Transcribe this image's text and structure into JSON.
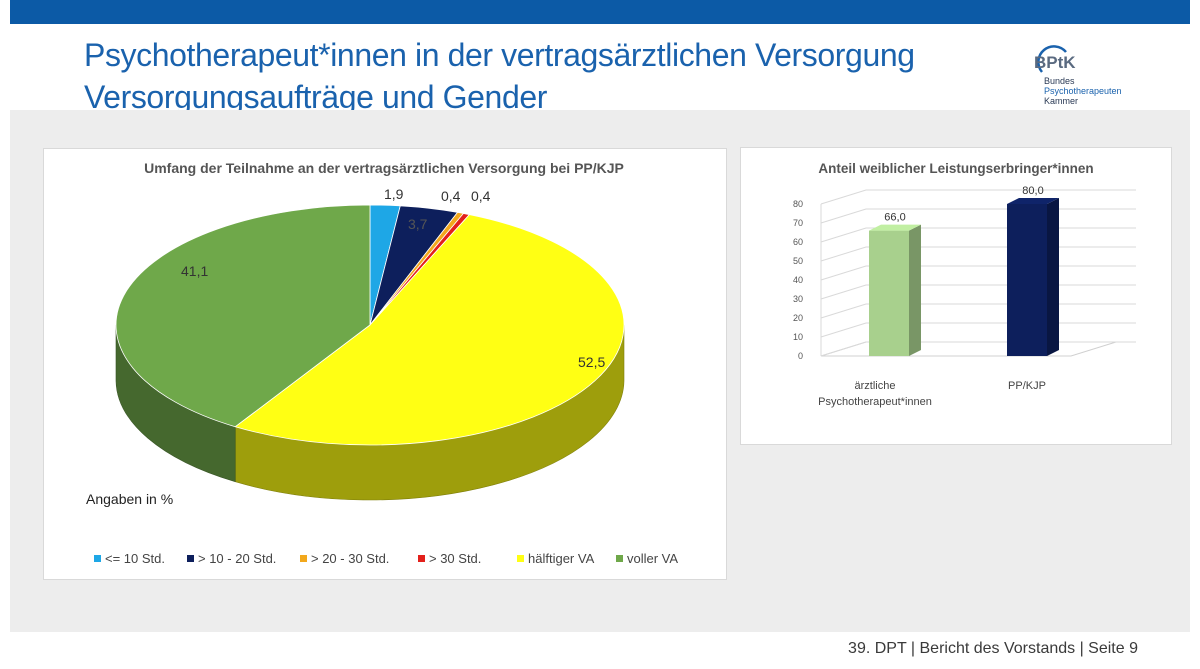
{
  "header": {
    "title_line1": "Psychotherapeut*innen in der vertragsärztlichen Versorgung",
    "title_line2": "Versorgungsaufträge und Gender"
  },
  "logo": {
    "mark": "BPtK",
    "line1": "Bundes",
    "line2": "Psychotherapeuten",
    "line3": "Kammer"
  },
  "footer": {
    "text": "39. DPT | Bericht des Vorstands | Seite 9"
  },
  "chart_data": [
    {
      "type": "pie",
      "title": "Umfang der Teilnahme an der vertragsärztlichen Versorgung bei PP/KJP",
      "note": "Angaben in %",
      "legend_position": "bottom",
      "slices": [
        {
          "label": "<= 10 Std.",
          "value": 1.9,
          "value_label": "1,9",
          "color": "#1ea7e6"
        },
        {
          "label": "> 10 - 20 Std.",
          "value": 3.7,
          "value_label": "3,7",
          "color": "#0d1f5c"
        },
        {
          "label": "> 20 - 30 Std.",
          "value": 0.4,
          "value_label": "0,4",
          "color": "#f2a81c"
        },
        {
          "label": "> 30 Std.",
          "value": 0.4,
          "value_label": "0,4",
          "color": "#e3201b"
        },
        {
          "label": "hälftiger VA",
          "value": 52.5,
          "value_label": "52,5",
          "color": "#ffff14"
        },
        {
          "label": "voller VA",
          "value": 41.1,
          "value_label": "41,1",
          "color": "#6fa84a"
        }
      ]
    },
    {
      "type": "bar",
      "title": "Anteil weiblicher Leistungserbringer*innen",
      "categories": [
        "ärztliche Psychotherapeut*innen",
        "PP/KJP"
      ],
      "category_lines": [
        [
          "ärztliche",
          "Psychotherapeut*innen"
        ],
        [
          "PP/KJP"
        ]
      ],
      "values": [
        66.0,
        80.0
      ],
      "value_labels": [
        "66,0",
        "80,0"
      ],
      "colors": [
        "#a8d08d",
        "#0d1f5c"
      ],
      "ylim": [
        0,
        80
      ],
      "yticks": [
        0,
        10,
        20,
        30,
        40,
        50,
        60,
        70,
        80
      ],
      "grid": true
    }
  ]
}
